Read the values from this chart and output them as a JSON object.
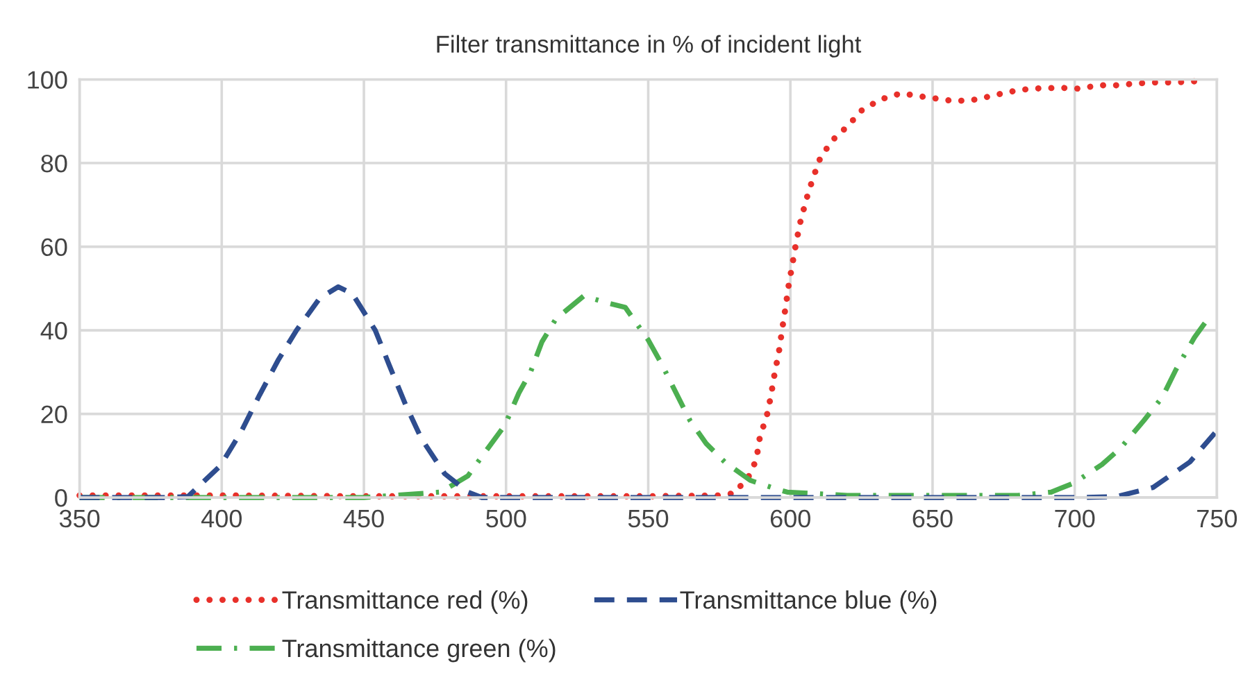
{
  "chart_data": {
    "type": "line",
    "title": "Filter transmittance in % of incident light",
    "xlim": [
      350,
      750
    ],
    "xticks": [
      350,
      400,
      450,
      500,
      550,
      600,
      650,
      700,
      750
    ],
    "ylim": [
      0,
      100
    ],
    "yticks": [
      0,
      20,
      40,
      60,
      80,
      100
    ],
    "grid": true,
    "legend": "bottom",
    "series": [
      {
        "name": "Transmittance red (%)",
        "color": "#e8302a",
        "line_style": "dotted",
        "x": [
          350,
          400,
          450,
          500,
          550,
          575,
          580,
          585,
          588,
          589.2,
          591.9,
          593.2,
          594.5,
          596,
          597.1,
          598.3,
          599.4,
          600.7,
          602,
          603.6,
          605.6,
          607.9,
          610.6,
          615,
          620.2,
          625.1,
          631.6,
          638.9,
          646.4,
          653.8,
          657.8,
          665.3,
          672.8,
          680.5,
          688,
          695.1,
          701.8,
          708.1,
          714.5,
          721,
          728,
          735.6,
          743.3
        ],
        "values": [
          0.5,
          0.5,
          0.3,
          0.3,
          0.3,
          0.5,
          1,
          4.6,
          9,
          14.2,
          20.1,
          24.5,
          29.8,
          35,
          40.2,
          45.5,
          50.8,
          55.8,
          60.9,
          66.2,
          71.3,
          76.3,
          81.4,
          85.6,
          88.9,
          92.6,
          95.2,
          96.7,
          95.9,
          95.2,
          94.8,
          95.2,
          96.4,
          97.5,
          97.9,
          98,
          97.8,
          98.6,
          98.6,
          99,
          99.3,
          99.3,
          99.6
        ]
      },
      {
        "name": "Transmittance green (%)",
        "color": "#4caf50",
        "line_style": "dashdot",
        "x": [
          350,
          400,
          450,
          477,
          486.6,
          493.1,
          499.6,
          504.5,
          508.6,
          512.6,
          517.5,
          527.3,
          535.4,
          541.9,
          550,
          554.9,
          559.8,
          564.7,
          570.4,
          576.9,
          585.9,
          595.7,
          598.9,
          620,
          650,
          680,
          691.7,
          699.8,
          709.6,
          716.1,
          724.3,
          730.8,
          735.6,
          742.1,
          747
        ],
        "values": [
          0,
          0,
          0,
          1.3,
          5.2,
          11.3,
          17.3,
          25,
          30,
          37.2,
          42.7,
          48.2,
          46.6,
          45.5,
          37.7,
          31.7,
          25,
          18.4,
          12.9,
          8.5,
          4.1,
          1.9,
          1.3,
          0.5,
          0.5,
          0.5,
          1.3,
          3.5,
          7.9,
          11.8,
          18.4,
          24,
          30.6,
          38.3,
          42.9
        ]
      },
      {
        "name": "Transmittance blue (%)",
        "color": "#2e4d8f",
        "line_style": "dashed",
        "x": [
          350,
          380,
          388.1,
          399.5,
          406.8,
          413.3,
          419.8,
          426.3,
          434.5,
          441,
          445.9,
          454,
          458.9,
          464.6,
          470.3,
          478.4,
          486.6,
          491.5,
          550,
          600,
          650,
          700,
          714.5,
          727.5,
          740.5,
          750
        ],
        "values": [
          0,
          0,
          0.2,
          7.6,
          15.7,
          24.5,
          32.8,
          40,
          47.7,
          50.4,
          48.8,
          40,
          31.7,
          22.3,
          14,
          5.7,
          1.3,
          0,
          0,
          0,
          0,
          0,
          0.2,
          2.4,
          8.5,
          16
        ]
      }
    ]
  }
}
